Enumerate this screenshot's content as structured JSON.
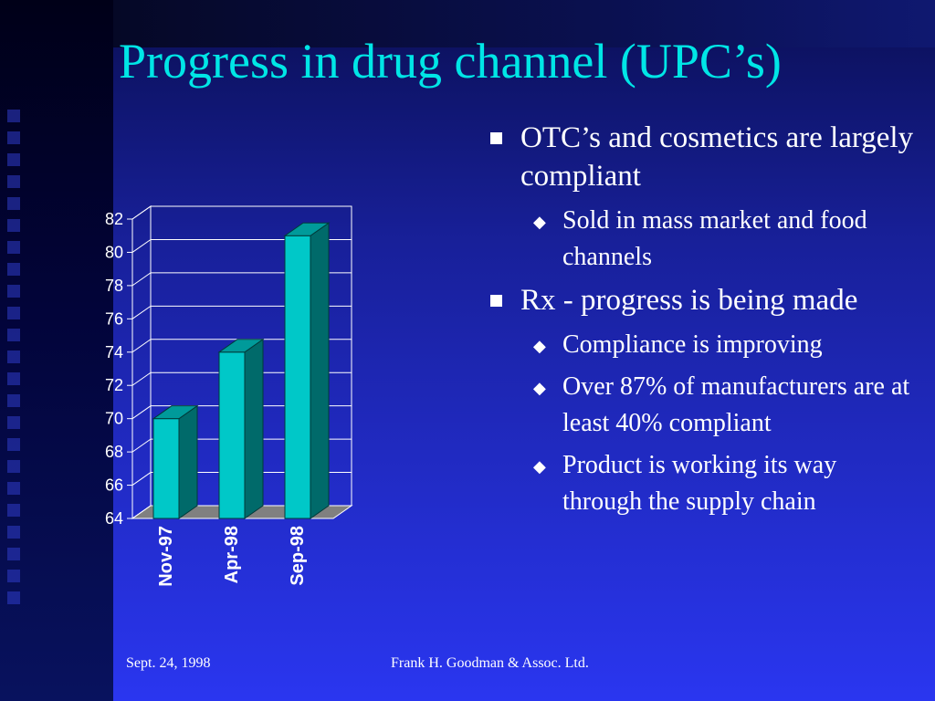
{
  "slide": {
    "title": "Progress in drug channel (UPC’s)",
    "footer_left": "Sept. 24, 1998",
    "footer_center": "Frank H. Goodman & Assoc. Ltd."
  },
  "bullets": [
    {
      "level": 1,
      "text": "OTC’s and cosmetics are largely compliant"
    },
    {
      "level": 2,
      "text": "Sold in mass market and food channels"
    },
    {
      "level": 1,
      "text": "Rx - progress is being made"
    },
    {
      "level": 2,
      "text": "Compliance is improving"
    },
    {
      "level": 2,
      "text": "Over 87% of manufacturers are at least 40% compliant"
    },
    {
      "level": 2,
      "text": "Product is working its way through the supply chain"
    }
  ],
  "colors": {
    "title": "#00e6e6",
    "bar_front": "#00c8c8",
    "bar_side": "#006a6a",
    "bar_top": "#009a9a",
    "floor": "#808080"
  },
  "chart_data": {
    "type": "bar",
    "title": "",
    "xlabel": "",
    "ylabel": "",
    "categories": [
      "Nov-97",
      "Apr-98",
      "Sep-98"
    ],
    "values": [
      70,
      74,
      81
    ],
    "ylim": [
      64,
      82
    ],
    "yticks": [
      64,
      66,
      68,
      70,
      72,
      74,
      76,
      78,
      80,
      82
    ],
    "grid": true,
    "three_d": true
  }
}
